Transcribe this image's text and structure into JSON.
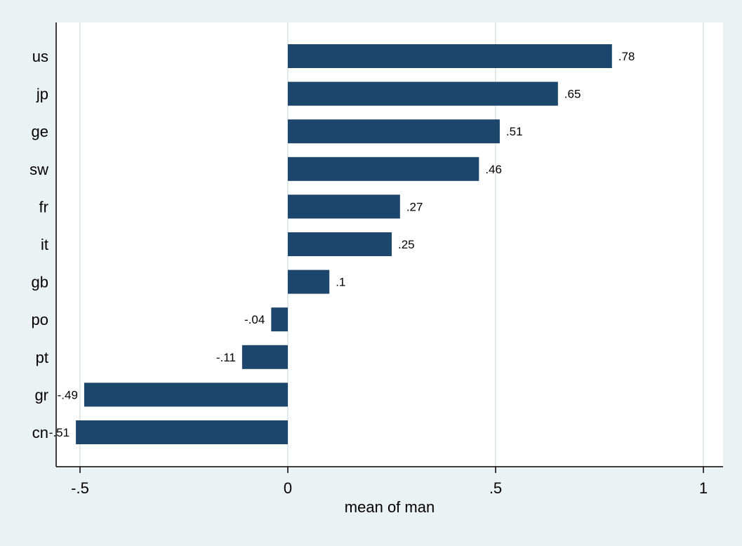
{
  "chart_data": {
    "type": "bar",
    "orientation": "horizontal",
    "categories": [
      "us",
      "jp",
      "ge",
      "sw",
      "fr",
      "it",
      "gb",
      "po",
      "pt",
      "gr",
      "cn"
    ],
    "values": [
      0.78,
      0.65,
      0.51,
      0.46,
      0.27,
      0.25,
      0.1,
      -0.04,
      -0.11,
      -0.49,
      -0.51
    ],
    "value_labels": [
      ".78",
      ".65",
      ".51",
      ".46",
      ".27",
      ".25",
      ".1",
      "-.04",
      "-.11",
      "-.49",
      "-.51"
    ],
    "xlabel": "mean of man",
    "xlim": [
      -0.55,
      1.0
    ],
    "xticks": [
      -0.5,
      0,
      0.5,
      1
    ],
    "xtick_labels": [
      "-.5",
      "0",
      ".5",
      "1"
    ],
    "grid": true,
    "colors": {
      "bar": "#1c466c",
      "background": "#eaf2f3",
      "plot_area": "#ffffff",
      "grid": "#e1ebed",
      "axis": "#000000"
    }
  }
}
